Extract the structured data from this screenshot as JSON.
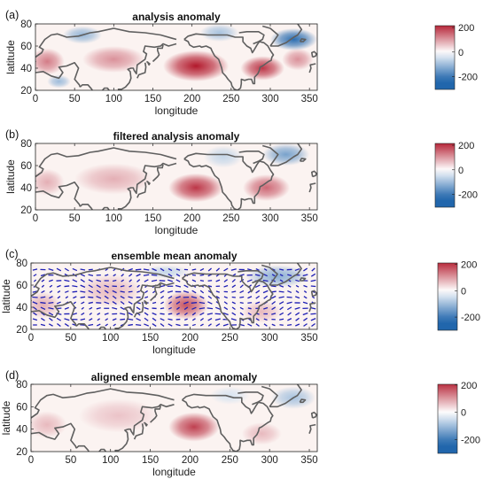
{
  "colors": {
    "positive": "#b2182b",
    "negative": "#2166ac",
    "neutral": "#ffffff",
    "coast": "#5f5f5f",
    "arrow": "#1f1fb5"
  },
  "chart_data": [
    {
      "type": "heatmap",
      "panel_label": "(a)",
      "title": "analysis anomaly",
      "xlabel": "longitude",
      "ylabel": "latitude",
      "xlim": [
        0,
        360
      ],
      "ylim": [
        20,
        80
      ],
      "xticks": [
        0,
        50,
        100,
        150,
        200,
        250,
        300,
        350
      ],
      "yticks": [
        20,
        40,
        60,
        80
      ],
      "colorbar": {
        "ticks": [
          200,
          0,
          -200
        ],
        "range": [
          -300,
          200
        ]
      },
      "anomaly_centers": [
        {
          "lon": 205,
          "lat": 42,
          "value": 230,
          "r_lon": 42,
          "r_lat": 14
        },
        {
          "lon": 290,
          "lat": 40,
          "value": 200,
          "r_lon": 28,
          "r_lat": 11
        },
        {
          "lon": 100,
          "lat": 48,
          "value": 110,
          "r_lon": 40,
          "r_lat": 12
        },
        {
          "lon": 15,
          "lat": 46,
          "value": 130,
          "r_lon": 22,
          "r_lat": 12
        },
        {
          "lon": 335,
          "lat": 48,
          "value": 110,
          "r_lon": 20,
          "r_lat": 10
        },
        {
          "lon": 330,
          "lat": 66,
          "value": -220,
          "r_lon": 30,
          "r_lat": 10
        },
        {
          "lon": 60,
          "lat": 70,
          "value": -110,
          "r_lon": 25,
          "r_lat": 8
        },
        {
          "lon": 30,
          "lat": 28,
          "value": -100,
          "r_lon": 15,
          "r_lat": 6
        },
        {
          "lon": 235,
          "lat": 72,
          "value": -90,
          "r_lon": 25,
          "r_lat": 8
        }
      ]
    },
    {
      "type": "heatmap",
      "panel_label": "(b)",
      "title": "filtered analysis anomaly",
      "xlabel": "longitude",
      "ylabel": "latitude",
      "xlim": [
        0,
        360
      ],
      "ylim": [
        20,
        80
      ],
      "xticks": [
        0,
        50,
        100,
        150,
        200,
        250,
        300,
        350
      ],
      "yticks": [
        20,
        40,
        60,
        80
      ],
      "colorbar": {
        "ticks": [
          200,
          0,
          -200
        ],
        "range": [
          -300,
          200
        ]
      },
      "anomaly_centers": [
        {
          "lon": 205,
          "lat": 40,
          "value": 200,
          "r_lon": 35,
          "r_lat": 13
        },
        {
          "lon": 295,
          "lat": 40,
          "value": 150,
          "r_lon": 30,
          "r_lat": 12
        },
        {
          "lon": 100,
          "lat": 48,
          "value": 80,
          "r_lon": 50,
          "r_lat": 14
        },
        {
          "lon": 15,
          "lat": 45,
          "value": 80,
          "r_lon": 22,
          "r_lat": 12
        },
        {
          "lon": 320,
          "lat": 70,
          "value": -140,
          "r_lon": 30,
          "r_lat": 10
        },
        {
          "lon": 240,
          "lat": 68,
          "value": -60,
          "r_lon": 25,
          "r_lat": 10
        }
      ]
    },
    {
      "type": "heatmap",
      "panel_label": "(c)",
      "title": "ensemble mean anomaly",
      "xlabel": "longitude",
      "ylabel": "latitude",
      "xlim": [
        0,
        360
      ],
      "ylim": [
        20,
        80
      ],
      "xticks": [
        0,
        50,
        100,
        150,
        200,
        250,
        300,
        350
      ],
      "yticks": [
        20,
        40,
        60,
        80
      ],
      "colorbar": {
        "ticks": [
          200,
          0,
          -200
        ],
        "range": [
          -300,
          200
        ]
      },
      "vector_field": true,
      "anomaly_centers": [
        {
          "lon": 195,
          "lat": 42,
          "value": 170,
          "r_lon": 28,
          "r_lat": 13
        },
        {
          "lon": 100,
          "lat": 55,
          "value": 70,
          "r_lon": 40,
          "r_lat": 15
        },
        {
          "lon": 15,
          "lat": 42,
          "value": 80,
          "r_lon": 22,
          "r_lat": 12
        },
        {
          "lon": 290,
          "lat": 36,
          "value": 70,
          "r_lon": 25,
          "r_lat": 10
        },
        {
          "lon": 310,
          "lat": 68,
          "value": -120,
          "r_lon": 40,
          "r_lat": 10
        },
        {
          "lon": 170,
          "lat": 72,
          "value": -60,
          "r_lon": 30,
          "r_lat": 6
        }
      ]
    },
    {
      "type": "heatmap",
      "panel_label": "(d)",
      "title": "aligned ensemble mean anomaly",
      "xlabel": "longitude",
      "ylabel": "latitude",
      "xlim": [
        0,
        360
      ],
      "ylim": [
        20,
        80
      ],
      "xticks": [
        0,
        50,
        100,
        150,
        200,
        250,
        300,
        350
      ],
      "yticks": [
        20,
        40,
        60,
        80
      ],
      "colorbar": {
        "ticks": [
          200,
          0,
          -200
        ],
        "range": [
          -300,
          200
        ]
      },
      "anomaly_centers": [
        {
          "lon": 205,
          "lat": 42,
          "value": 190,
          "r_lon": 32,
          "r_lat": 13
        },
        {
          "lon": 110,
          "lat": 52,
          "value": 60,
          "r_lon": 50,
          "r_lat": 15
        },
        {
          "lon": 20,
          "lat": 44,
          "value": 70,
          "r_lon": 25,
          "r_lat": 12
        },
        {
          "lon": 290,
          "lat": 36,
          "value": 70,
          "r_lon": 25,
          "r_lat": 10
        },
        {
          "lon": 330,
          "lat": 68,
          "value": -90,
          "r_lon": 28,
          "r_lat": 10
        },
        {
          "lon": 250,
          "lat": 70,
          "value": -40,
          "r_lon": 25,
          "r_lat": 8
        }
      ]
    }
  ]
}
